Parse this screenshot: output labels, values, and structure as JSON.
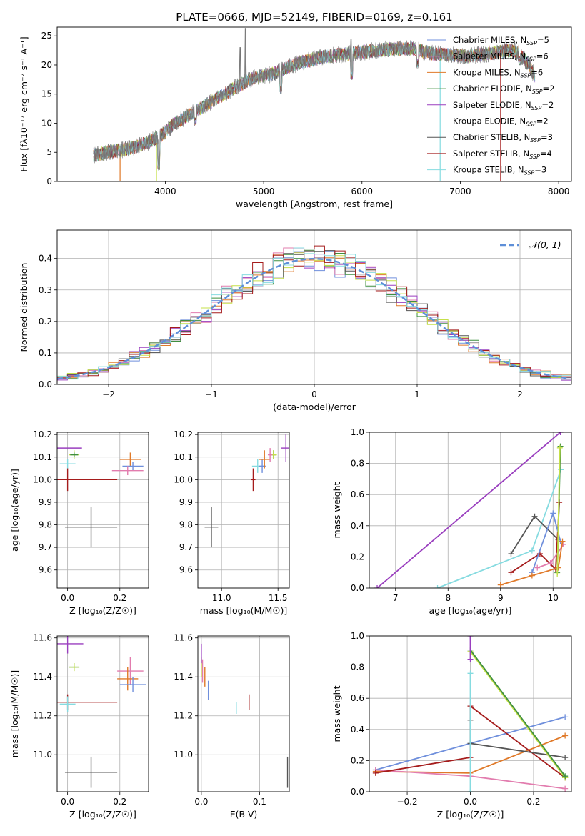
{
  "figure_title": "PLATE=0666, MJD=52149, FIBERID=0169, z=0.161",
  "colors": {
    "Chabrier MILES": "#6f8fdc",
    "Salpeter MILES": "#e27cae",
    "Kroupa MILES": "#e07a2a",
    "Chabrier ELODIE": "#3f8f3f",
    "Salpeter ELODIE": "#9a3fbf",
    "Kroupa ELODIE": "#c6e04a",
    "Chabrier STELIB": "#555555",
    "Salpeter STELIB": "#a51c1c",
    "Kroupa STELIB": "#86dbe0"
  },
  "chart_data": [
    {
      "id": "spectrum",
      "type": "line",
      "title": "PLATE=0666, MJD=52149, FIBERID=0169, z=0.161",
      "xlabel": "wavelength [Angstrom, rest frame]",
      "ylabel": "Flux [f_λ 10^-17 erg cm^-2 s^-1 A^-1]",
      "xlim": [
        2900,
        8130
      ],
      "ylim": [
        0,
        26.5
      ],
      "xticks": [
        4000,
        5000,
        6000,
        7000,
        8000
      ],
      "yticks": [
        0,
        5,
        10,
        15,
        20,
        25
      ],
      "grid": false,
      "legend_placement": "top-right",
      "legend": [
        {
          "base": "Chabrier MILES, N",
          "sub": "SSP",
          "tail": "=5"
        },
        {
          "base": "Salpeter MILES, N",
          "sub": "SSP",
          "tail": "=6"
        },
        {
          "base": "Kroupa MILES, N",
          "sub": "SSP",
          "tail": "=6"
        },
        {
          "base": "Chabrier ELODIE, N",
          "sub": "SSP",
          "tail": "=2"
        },
        {
          "base": "Salpeter ELODIE, N",
          "sub": "SSP",
          "tail": "=2"
        },
        {
          "base": "Kroupa ELODIE, N",
          "sub": "SSP",
          "tail": "=2"
        },
        {
          "base": "Chabrier STELIB, N",
          "sub": "SSP",
          "tail": "=3"
        },
        {
          "base": "Salpeter STELIB, N",
          "sub": "SSP",
          "tail": "=4"
        },
        {
          "base": "Kroupa STELIB, N",
          "sub": "SSP",
          "tail": "=3"
        }
      ],
      "continuum": [
        [
          3270,
          4.5
        ],
        [
          3400,
          5.0
        ],
        [
          3600,
          5.5
        ],
        [
          3800,
          6.5
        ],
        [
          3950,
          7.8
        ],
        [
          4100,
          10.0
        ],
        [
          4300,
          12.0
        ],
        [
          4500,
          14.0
        ],
        [
          4700,
          16.0
        ],
        [
          4900,
          17.8
        ],
        [
          5100,
          18.5
        ],
        [
          5300,
          20.0
        ],
        [
          5500,
          21.0
        ],
        [
          5700,
          21.6
        ],
        [
          5900,
          22.0
        ],
        [
          6100,
          22.4
        ],
        [
          6300,
          22.8
        ],
        [
          6500,
          22.8
        ],
        [
          6700,
          22.0
        ],
        [
          6900,
          21.7
        ],
        [
          7100,
          21.5
        ],
        [
          7300,
          22.0
        ],
        [
          7500,
          22.5
        ],
        [
          7600,
          22.0
        ],
        [
          7700,
          20.0
        ],
        [
          7760,
          18.0
        ]
      ],
      "spikes": [
        [
          4815,
          26.3
        ],
        [
          4760,
          23.0
        ],
        [
          5890,
          24.5
        ],
        [
          7550,
          24.0
        ]
      ],
      "dips": [
        [
          3935,
          2.0
        ],
        [
          4305,
          9.5
        ],
        [
          5175,
          15.0
        ],
        [
          5895,
          17.5
        ],
        [
          6565,
          19.5
        ],
        [
          7605,
          20.0
        ]
      ],
      "cutoffs": [
        [
          3540,
          0
        ],
        [
          3910,
          0
        ],
        [
          6795,
          0
        ],
        [
          7410,
          0
        ]
      ]
    },
    {
      "id": "residual-histogram",
      "type": "bar",
      "xlabel": "(data-model)/error",
      "ylabel": "Normed distribution",
      "xlim": [
        -2.5,
        2.5
      ],
      "ylim": [
        0,
        0.49
      ],
      "xticks": [
        -2,
        -1,
        0,
        1,
        2
      ],
      "yticks": [
        0.0,
        0.1,
        0.2,
        0.3,
        0.4
      ],
      "grid": true,
      "legend_placement": "top-right",
      "reference_curve": {
        "name": "𝒩(0, 1)",
        "mean": 0,
        "sigma": 1
      },
      "bin_width": 0.1
    },
    {
      "id": "age-vs-z",
      "type": "scatter",
      "xlabel": "Z [log₁₀(Z/Z☉)]",
      "ylabel": "age [log₁₀(age/yr)]",
      "xlim": [
        -0.04,
        0.31
      ],
      "ylim": [
        9.52,
        10.21
      ],
      "xticks": [
        0.0,
        0.2
      ],
      "yticks": [
        9.6,
        9.7,
        9.8,
        9.9,
        10.0,
        10.1,
        10.2
      ],
      "grid": true,
      "points": [
        {
          "model": "Chabrier STELIB",
          "x": 0.09,
          "y": 9.79,
          "xerr": 0.1,
          "yerr": 0.09
        },
        {
          "model": "Salpeter ELODIE",
          "x": 0.0,
          "y": 10.14,
          "xerr": 0.055,
          "yerr": 0.0
        },
        {
          "model": "Kroupa ELODIE",
          "x": 0.025,
          "y": 10.11,
          "xerr": 0.02,
          "yerr": 0.02
        },
        {
          "model": "Chabrier ELODIE",
          "x": 0.025,
          "y": 10.11,
          "xerr": 0.015,
          "yerr": 0.01
        },
        {
          "model": "Salpeter STELIB",
          "x": 0.0,
          "y": 10.0,
          "xerr": 0.19,
          "yerr": 0.05
        },
        {
          "model": "Kroupa STELIB",
          "x": 0.0,
          "y": 10.07,
          "xerr": 0.03,
          "yerr": 0.02
        },
        {
          "model": "Kroupa MILES",
          "x": 0.24,
          "y": 10.09,
          "xerr": 0.04,
          "yerr": 0.03
        },
        {
          "model": "Chabrier MILES",
          "x": 0.25,
          "y": 10.06,
          "xerr": 0.04,
          "yerr": 0.02
        },
        {
          "model": "Salpeter MILES",
          "x": 0.23,
          "y": 10.04,
          "xerr": 0.06,
          "yerr": 0.02
        }
      ]
    },
    {
      "id": "age-vs-mass",
      "type": "scatter",
      "xlabel": "mass [log₁₀(M/M☉)]",
      "ylabel": "",
      "xlim": [
        10.79,
        11.6
      ],
      "ylim": [
        9.52,
        10.21
      ],
      "xticks": [
        11.0,
        11.5
      ],
      "yticks": [
        9.6,
        9.7,
        9.8,
        9.9,
        10.0,
        10.1,
        10.2
      ],
      "grid": true,
      "points": [
        {
          "model": "Chabrier STELIB",
          "x": 10.91,
          "y": 9.79,
          "xerr": 0.06,
          "yerr": 0.09
        },
        {
          "model": "Salpeter STELIB",
          "x": 11.28,
          "y": 10.0,
          "xerr": 0.02,
          "yerr": 0.05
        },
        {
          "model": "Kroupa STELIB",
          "x": 11.32,
          "y": 10.06,
          "xerr": 0.05,
          "yerr": 0.03
        },
        {
          "model": "Chabrier MILES",
          "x": 11.36,
          "y": 10.06,
          "xerr": 0.03,
          "yerr": 0.03
        },
        {
          "model": "Kroupa MILES",
          "x": 11.38,
          "y": 10.09,
          "xerr": 0.05,
          "yerr": 0.04
        },
        {
          "model": "Chabrier ELODIE",
          "x": 11.46,
          "y": 10.11,
          "xerr": 0.02,
          "yerr": 0.02
        },
        {
          "model": "Kroupa ELODIE",
          "x": 11.46,
          "y": 10.11,
          "xerr": 0.03,
          "yerr": 0.02
        },
        {
          "model": "Salpeter ELODIE",
          "x": 11.57,
          "y": 10.14,
          "xerr": 0.04,
          "yerr": 0.06
        },
        {
          "model": "Salpeter MILES",
          "x": 11.43,
          "y": 10.11,
          "xerr": 0.02,
          "yerr": 0.03
        }
      ]
    },
    {
      "id": "weight-vs-age",
      "type": "line",
      "xlabel": "age [log₁₀(age/yr)]",
      "ylabel": "mass weight",
      "xlim": [
        6.5,
        10.35
      ],
      "ylim": [
        0,
        1
      ],
      "xticks": [
        7,
        8,
        9,
        10
      ],
      "yticks": [
        0.0,
        0.2,
        0.4,
        0.6,
        0.8,
        1.0
      ],
      "grid": true,
      "series": [
        {
          "model": "Salpeter ELODIE",
          "points": [
            [
              6.65,
              0.0
            ],
            [
              10.14,
              1.0
            ]
          ]
        },
        {
          "model": "Kroupa STELIB",
          "points": [
            [
              7.8,
              0.0
            ],
            [
              9.6,
              0.24
            ],
            [
              10.15,
              0.76
            ]
          ]
        },
        {
          "model": "Chabrier STELIB",
          "points": [
            [
              9.2,
              0.22
            ],
            [
              9.65,
              0.46
            ],
            [
              10.1,
              0.31
            ]
          ]
        },
        {
          "model": "Salpeter STELIB",
          "points": [
            [
              9.2,
              0.1
            ],
            [
              9.75,
              0.22
            ],
            [
              10.05,
              0.12
            ],
            [
              10.12,
              0.55
            ]
          ]
        },
        {
          "model": "Chabrier MILES",
          "points": [
            [
              9.6,
              0.1
            ],
            [
              10.0,
              0.48
            ],
            [
              10.14,
              0.3
            ]
          ]
        },
        {
          "model": "Salpeter MILES",
          "points": [
            [
              9.7,
              0.13
            ],
            [
              9.95,
              0.16
            ],
            [
              10.2,
              0.28
            ]
          ]
        },
        {
          "model": "Kroupa MILES",
          "points": [
            [
              9.0,
              0.02
            ],
            [
              9.6,
              0.08
            ],
            [
              10.1,
              0.13
            ],
            [
              10.18,
              0.3
            ]
          ]
        },
        {
          "model": "Chabrier ELODIE",
          "points": [
            [
              10.08,
              0.1
            ],
            [
              10.14,
              0.91
            ]
          ]
        },
        {
          "model": "Kroupa ELODIE",
          "points": [
            [
              10.08,
              0.09
            ],
            [
              10.13,
              0.9
            ]
          ]
        }
      ]
    },
    {
      "id": "mass-vs-z",
      "type": "scatter",
      "xlabel": "Z [log₁₀(Z/Z☉)]",
      "ylabel": "mass [log₁₀(M/M☉)]",
      "xlim": [
        -0.04,
        0.31
      ],
      "ylim": [
        10.81,
        11.61
      ],
      "xticks": [
        0.0,
        0.2
      ],
      "yticks": [
        11.0,
        11.2,
        11.4,
        11.6
      ],
      "grid": true,
      "points": [
        {
          "model": "Chabrier STELIB",
          "x": 0.09,
          "y": 10.91,
          "xerr": 0.1,
          "yerr": 0.08
        },
        {
          "model": "Salpeter STELIB",
          "x": 0.0,
          "y": 11.27,
          "xerr": 0.19,
          "yerr": 0.04
        },
        {
          "model": "Kroupa STELIB",
          "x": 0.0,
          "y": 11.26,
          "xerr": 0.03,
          "yerr": 0.04
        },
        {
          "model": "Chabrier ELODIE",
          "x": 0.025,
          "y": 11.45,
          "xerr": 0.02,
          "yerr": 0.02
        },
        {
          "model": "Kroupa ELODIE",
          "x": 0.025,
          "y": 11.45,
          "xerr": 0.02,
          "yerr": 0.02
        },
        {
          "model": "Salpeter ELODIE",
          "x": 0.0,
          "y": 11.57,
          "xerr": 0.06,
          "yerr": 0.05
        },
        {
          "model": "Salpeter MILES",
          "x": 0.24,
          "y": 11.43,
          "xerr": 0.05,
          "yerr": 0.07
        },
        {
          "model": "Kroupa MILES",
          "x": 0.23,
          "y": 11.39,
          "xerr": 0.04,
          "yerr": 0.06
        },
        {
          "model": "Chabrier MILES",
          "x": 0.25,
          "y": 11.36,
          "xerr": 0.05,
          "yerr": 0.04
        }
      ]
    },
    {
      "id": "mass-vs-ebv",
      "type": "scatter",
      "xlabel": "E(B-V)",
      "ylabel": "",
      "xlim": [
        -0.006,
        0.151
      ],
      "ylim": [
        10.81,
        11.61
      ],
      "xticks": [
        0.0,
        0.1
      ],
      "yticks": [
        11.0,
        11.2,
        11.4,
        11.6
      ],
      "grid": true,
      "points": [
        {
          "model": "Chabrier STELIB",
          "x": 0.148,
          "y": 10.91,
          "xerr": 0.0,
          "yerr": 0.08
        },
        {
          "model": "Salpeter STELIB",
          "x": 0.082,
          "y": 11.27,
          "xerr": 0.0,
          "yerr": 0.04
        },
        {
          "model": "Kroupa STELIB",
          "x": 0.06,
          "y": 11.24,
          "xerr": 0.0,
          "yerr": 0.03
        },
        {
          "model": "Chabrier MILES",
          "x": 0.012,
          "y": 11.33,
          "xerr": 0.0,
          "yerr": 0.05
        },
        {
          "model": "Kroupa MILES",
          "x": 0.006,
          "y": 11.4,
          "xerr": 0.0,
          "yerr": 0.05
        },
        {
          "model": "Salpeter MILES",
          "x": 0.002,
          "y": 11.43,
          "xerr": 0.0,
          "yerr": 0.06
        },
        {
          "model": "Kroupa ELODIE",
          "x": 0.0,
          "y": 11.45,
          "xerr": 0.0,
          "yerr": 0.05
        },
        {
          "model": "Salpeter ELODIE",
          "x": 0.0,
          "y": 11.52,
          "xerr": 0.0,
          "yerr": 0.05
        }
      ]
    },
    {
      "id": "weight-vs-z",
      "type": "line",
      "xlabel": "Z [log₁₀(Z/Z☉)]",
      "ylabel": "mass weight",
      "xlim": [
        -0.32,
        0.32
      ],
      "ylim": [
        0,
        1
      ],
      "xticks": [
        -0.2,
        0.0,
        0.2
      ],
      "yticks": [
        0.0,
        0.2,
        0.4,
        0.6,
        0.8,
        1.0
      ],
      "grid": true,
      "series": [
        {
          "model": "Chabrier MILES",
          "points": [
            [
              -0.3,
              0.14
            ],
            [
              0.0,
              0.31
            ],
            [
              0.3,
              0.48
            ]
          ]
        },
        {
          "model": "Kroupa MILES",
          "points": [
            [
              -0.3,
              0.13
            ],
            [
              0.0,
              0.12
            ],
            [
              0.3,
              0.36
            ]
          ]
        },
        {
          "model": "Salpeter MILES",
          "points": [
            [
              -0.3,
              0.14
            ],
            [
              0.0,
              0.1
            ],
            [
              0.3,
              0.02
            ]
          ]
        },
        {
          "model": "Salpeter STELIB",
          "points": [
            [
              -0.3,
              0.12
            ],
            [
              0.0,
              0.22
            ],
            [
              0.0,
              0.55
            ],
            [
              0.3,
              0.09
            ]
          ]
        },
        {
          "model": "Chabrier STELIB",
          "points": [
            [
              0.0,
              0.46
            ],
            [
              0.0,
              0.31
            ],
            [
              0.3,
              0.22
            ]
          ]
        },
        {
          "model": "Kroupa ELODIE",
          "points": [
            [
              0.0,
              0.9
            ],
            [
              0.3,
              0.09
            ]
          ]
        },
        {
          "model": "Chabrier ELODIE",
          "points": [
            [
              0.0,
              0.91
            ],
            [
              0.3,
              0.1
            ]
          ]
        },
        {
          "model": "Salpeter ELODIE",
          "points": [
            [
              0.0,
              1.0
            ],
            [
              0.0,
              0.85
            ]
          ]
        },
        {
          "model": "Kroupa STELIB",
          "points": [
            [
              0.0,
              0.0
            ],
            [
              0.0,
              0.76
            ]
          ]
        }
      ]
    }
  ]
}
